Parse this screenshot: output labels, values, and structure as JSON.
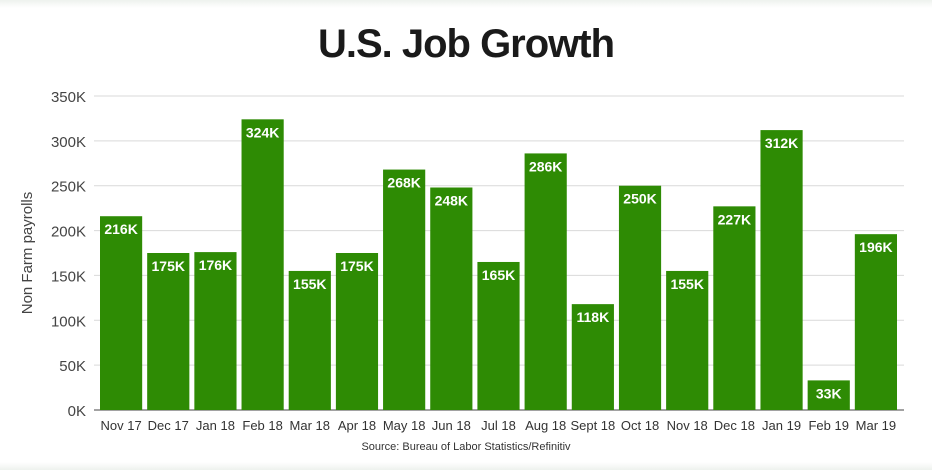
{
  "colors": {
    "bar": "#2e8b04",
    "grid": "#d9d9d9",
    "axis": "#444444",
    "label_text": "#ffffff"
  },
  "chart_data": {
    "type": "bar",
    "title": "U.S. Job Growth",
    "ylabel": "Non Farm payrolls",
    "xlabel": "",
    "ylim": [
      0,
      350
    ],
    "yticks": [
      0,
      50,
      100,
      150,
      200,
      250,
      300,
      350
    ],
    "ytick_labels": [
      "0K",
      "50K",
      "100K",
      "150K",
      "200K",
      "250K",
      "300K",
      "350K"
    ],
    "grid": true,
    "categories": [
      "Nov 17",
      "Dec 17",
      "Jan 18",
      "Feb 18",
      "Mar 18",
      "Apr 18",
      "May 18",
      "Jun 18",
      "Jul 18",
      "Aug 18",
      "Sept 18",
      "Oct 18",
      "Nov 18",
      "Dec 18",
      "Jan 19",
      "Feb 19",
      "Mar 19"
    ],
    "values": [
      216,
      175,
      176,
      324,
      155,
      175,
      268,
      248,
      165,
      286,
      118,
      250,
      155,
      227,
      312,
      33,
      196
    ],
    "data_labels": [
      "216K",
      "175K",
      "176K",
      "324K",
      "155K",
      "175K",
      "268K",
      "248K",
      "165K",
      "286K",
      "118K",
      "250K",
      "155K",
      "227K",
      "312K",
      "33K",
      "196K"
    ],
    "source": "Source: Bureau of Labor Statistics/Refinitiv"
  }
}
